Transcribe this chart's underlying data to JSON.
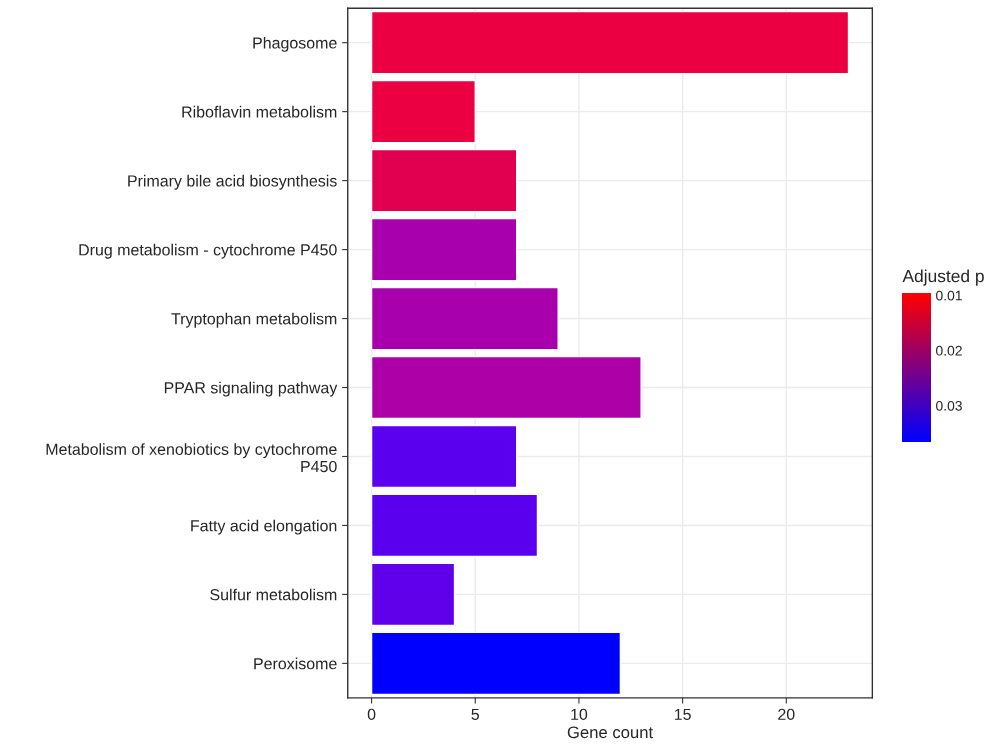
{
  "chart_data": {
    "type": "bar",
    "orientation": "horizontal",
    "xlabel": "Gene count",
    "clabel": "Adjusted p",
    "categories": [
      "Phagosome",
      "Riboflavin metabolism",
      "Primary bile acid biosynthesis",
      "Drug metabolism - cytochrome P450",
      "Tryptophan metabolism",
      "PPAR signaling pathway",
      "Metabolism of xenobiotics by cytochrome\nP450",
      "Fatty acid elongation",
      "Sulfur metabolism",
      "Peroxisome"
    ],
    "values": [
      23,
      5,
      7,
      7,
      9,
      13,
      7,
      8,
      4,
      12
    ],
    "colors": [
      "#eb0041",
      "#eb0041",
      "#e1004f",
      "#a900ad",
      "#a900ad",
      "#ad00a6",
      "#5a00ef",
      "#5a00ef",
      "#6000ea",
      "#0000ff"
    ],
    "xlim": [
      -1.15,
      24.15
    ],
    "xticks": [
      0,
      5,
      10,
      15,
      20
    ],
    "clim": [
      0.0096,
      0.0366
    ],
    "cticks": [
      0.01,
      0.02,
      0.03
    ],
    "grid": true,
    "legend": false
  }
}
